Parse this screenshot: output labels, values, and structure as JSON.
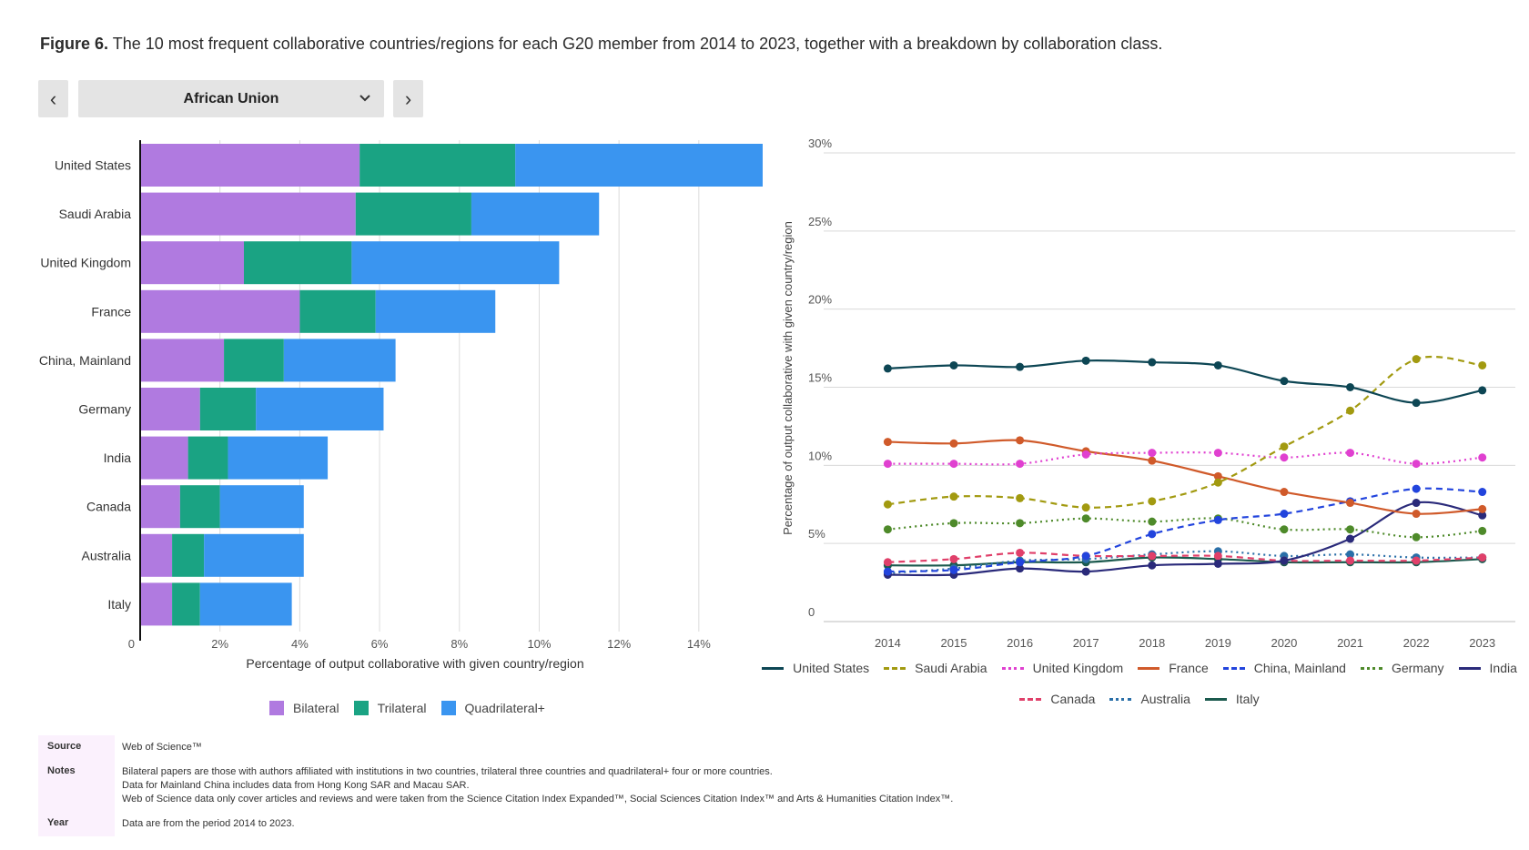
{
  "header": {
    "figure_label": "Figure 6.",
    "title": "The 10 most frequent collaborative countries/regions for each G20 member from 2014 to 2023, together with a breakdown by collaboration class."
  },
  "controls": {
    "prev_icon": "‹",
    "next_icon": "›",
    "dropdown_icon": "chevron-down-icon",
    "selected_member": "African Union"
  },
  "chart_data": [
    {
      "type": "bar",
      "orientation": "horizontal",
      "stacked": true,
      "categories": [
        "United States",
        "Saudi Arabia",
        "United Kingdom",
        "France",
        "China, Mainland",
        "Germany",
        "India",
        "Canada",
        "Australia",
        "Italy"
      ],
      "series": [
        {
          "name": "Bilateral",
          "color": "#b07ae0",
          "values": [
            5.5,
            5.4,
            2.6,
            4.0,
            2.1,
            1.5,
            1.2,
            1.0,
            0.8,
            0.8
          ]
        },
        {
          "name": "Trilateral",
          "color": "#1aa383",
          "values": [
            3.9,
            2.9,
            2.7,
            1.9,
            1.5,
            1.4,
            1.0,
            1.0,
            0.8,
            0.7
          ]
        },
        {
          "name": "Quadrilateral+",
          "color": "#3a95f0",
          "values": [
            6.2,
            3.2,
            5.2,
            3.0,
            2.8,
            3.2,
            2.5,
            2.1,
            2.5,
            2.3
          ]
        }
      ],
      "xlabel": "Percentage of output collaborative with given country/region",
      "xlim": [
        0,
        15.6
      ],
      "xticks": [
        0,
        2,
        4,
        6,
        8,
        10,
        12,
        14
      ],
      "xtick_labels": [
        "0",
        "2%",
        "4%",
        "6%",
        "8%",
        "10%",
        "12%",
        "14%"
      ],
      "grid": true,
      "legend_position": "bottom"
    },
    {
      "type": "line",
      "x": [
        2014,
        2015,
        2016,
        2017,
        2018,
        2019,
        2020,
        2021,
        2022,
        2023
      ],
      "series": [
        {
          "name": "United States",
          "color": "#0d4654",
          "dash": "solid",
          "values": [
            16.2,
            16.4,
            16.3,
            16.7,
            16.6,
            16.4,
            15.4,
            15.0,
            14.0,
            14.8
          ]
        },
        {
          "name": "Saudi Arabia",
          "color": "#a29a10",
          "dash": "dashed",
          "values": [
            7.5,
            8.0,
            7.9,
            7.3,
            7.7,
            8.9,
            11.2,
            13.5,
            16.8,
            16.4
          ]
        },
        {
          "name": "United Kingdom",
          "color": "#e040d0",
          "dash": "dotted",
          "values": [
            10.1,
            10.1,
            10.1,
            10.7,
            10.8,
            10.8,
            10.5,
            10.8,
            10.1,
            10.5
          ]
        },
        {
          "name": "France",
          "color": "#d05a2a",
          "dash": "solid",
          "values": [
            11.5,
            11.4,
            11.6,
            10.9,
            10.3,
            9.3,
            8.3,
            7.6,
            6.9,
            7.2
          ]
        },
        {
          "name": "China, Mainland",
          "color": "#2244dd",
          "dash": "dashed",
          "values": [
            3.2,
            3.3,
            3.8,
            4.2,
            5.6,
            6.5,
            6.9,
            7.7,
            8.5,
            8.3
          ]
        },
        {
          "name": "Germany",
          "color": "#4e8a2a",
          "dash": "dotted",
          "values": [
            5.9,
            6.3,
            6.3,
            6.6,
            6.4,
            6.6,
            5.9,
            5.9,
            5.4,
            5.8
          ]
        },
        {
          "name": "India",
          "color": "#2a2a7a",
          "dash": "solid",
          "values": [
            3.0,
            3.0,
            3.4,
            3.2,
            3.6,
            3.7,
            3.9,
            5.3,
            7.6,
            6.8
          ]
        },
        {
          "name": "Canada",
          "color": "#e0406a",
          "dash": "dashed",
          "values": [
            3.8,
            4.0,
            4.4,
            4.2,
            4.2,
            4.2,
            3.9,
            3.9,
            3.9,
            4.1
          ]
        },
        {
          "name": "Australia",
          "color": "#2a6fa8",
          "dash": "dotted",
          "values": [
            3.1,
            3.4,
            3.9,
            4.0,
            4.3,
            4.5,
            4.2,
            4.3,
            4.1,
            4.1
          ]
        },
        {
          "name": "Italy",
          "color": "#1b5a4e",
          "dash": "solid",
          "values": [
            3.6,
            3.6,
            3.8,
            3.8,
            4.1,
            4.0,
            3.8,
            3.8,
            3.8,
            4.0
          ]
        }
      ],
      "ylabel": "Percentage of output collaborative with given country/region",
      "ylim": [
        0,
        30
      ],
      "yticks": [
        0,
        5,
        10,
        15,
        20,
        25,
        30
      ],
      "ytick_labels": [
        "0",
        "5%",
        "10%",
        "15%",
        "20%",
        "25%",
        "30%"
      ],
      "grid": true,
      "legend_position": "bottom"
    }
  ],
  "meta": [
    {
      "key": "Source",
      "value": "Web of Science™"
    },
    {
      "key": "Notes",
      "value": "Bilateral papers are those with authors affiliated with institutions in two countries, trilateral three countries and quadrilateral+ four or more countries.\nData for Mainland China includes data from Hong Kong SAR and Macau SAR.\nWeb of Science data only cover articles and reviews and were taken from the Science Citation Index Expanded™, Social Sciences Citation Index™ and Arts & Humanities Citation Index™."
    },
    {
      "key": "Year",
      "value": "Data are from the period 2014 to 2023."
    }
  ]
}
